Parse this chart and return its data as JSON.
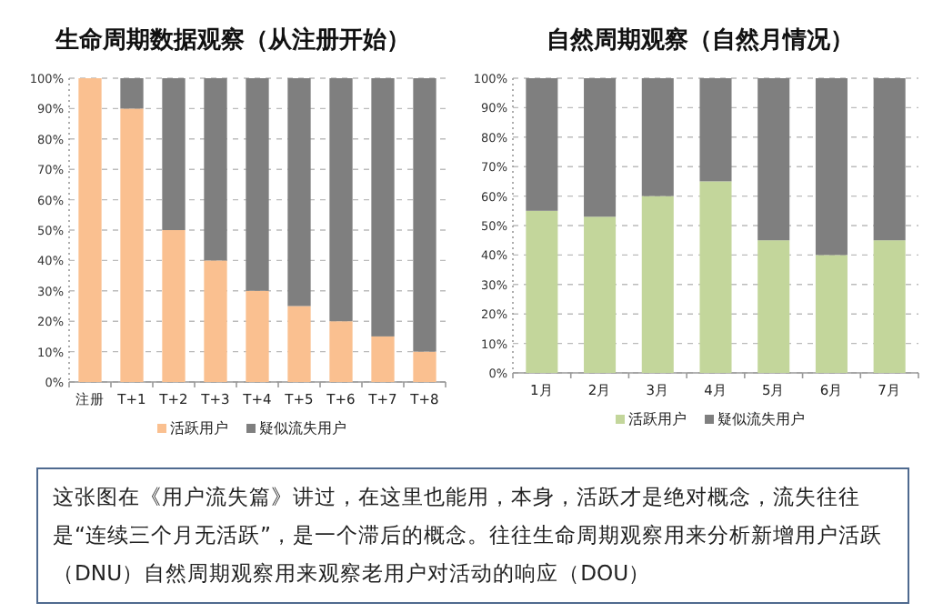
{
  "chart_data": [
    {
      "type": "bar",
      "title": "生命周期数据观察（从注册开始）",
      "categories": [
        "注册",
        "T+1",
        "T+2",
        "T+3",
        "T+4",
        "T+5",
        "T+6",
        "T+7",
        "T+8"
      ],
      "stacked": true,
      "grid": "y",
      "legend": "bottom",
      "ylim": [
        0,
        100
      ],
      "yticks": [
        {
          "value": 0,
          "label": "0%"
        },
        {
          "value": 10,
          "label": "10%"
        },
        {
          "value": 20,
          "label": "20%"
        },
        {
          "value": 30,
          "label": "30%"
        },
        {
          "value": 40,
          "label": "40%"
        },
        {
          "value": 50,
          "label": "50%"
        },
        {
          "value": 60,
          "label": "60%"
        },
        {
          "value": 70,
          "label": "70%"
        },
        {
          "value": 80,
          "label": "80%"
        },
        {
          "value": 90,
          "label": "90%"
        },
        {
          "value": 100,
          "label": "100%"
        }
      ],
      "series": [
        {
          "name": "活跃用户",
          "color": "#fac090",
          "values": [
            100,
            90,
            50,
            40,
            30,
            25,
            20,
            15,
            10
          ]
        },
        {
          "name": "疑似流失用户",
          "color": "#7f7f7f",
          "values": [
            0,
            10,
            50,
            60,
            70,
            75,
            80,
            85,
            90
          ]
        }
      ]
    },
    {
      "type": "bar",
      "title": "自然周期观察（自然月情况）",
      "categories": [
        "1月",
        "2月",
        "3月",
        "4月",
        "5月",
        "6月",
        "7月"
      ],
      "stacked": true,
      "grid": "y",
      "legend": "bottom",
      "ylim": [
        0,
        100
      ],
      "yticks": [
        {
          "value": 0,
          "label": "0%"
        },
        {
          "value": 10,
          "label": "10%"
        },
        {
          "value": 20,
          "label": "20%"
        },
        {
          "value": 30,
          "label": "30%"
        },
        {
          "value": 40,
          "label": "40%"
        },
        {
          "value": 50,
          "label": "50%"
        },
        {
          "value": 60,
          "label": "60%"
        },
        {
          "value": 70,
          "label": "70%"
        },
        {
          "value": 80,
          "label": "80%"
        },
        {
          "value": 90,
          "label": "90%"
        },
        {
          "value": 100,
          "label": "100%"
        }
      ],
      "series": [
        {
          "name": "活跃用户",
          "color": "#c3d69b",
          "values": [
            55,
            53,
            60,
            65,
            45,
            40,
            45
          ]
        },
        {
          "name": "疑似流失用户",
          "color": "#7f7f7f",
          "values": [
            45,
            47,
            40,
            35,
            55,
            60,
            55
          ]
        }
      ]
    },
    {
      "type": "other",
      "annotations": [
        "这张图在《用户流失篇》讲过，在这里也能用，本身，活跃才是绝对概念，流失往往是“连续三个月无活跃”，是一个滞后的概念。往往生命周期观察用来分析新增用户活跃（DNU）自然周期观察用来观察老用户对活动的响应（DOU）"
      ]
    }
  ]
}
